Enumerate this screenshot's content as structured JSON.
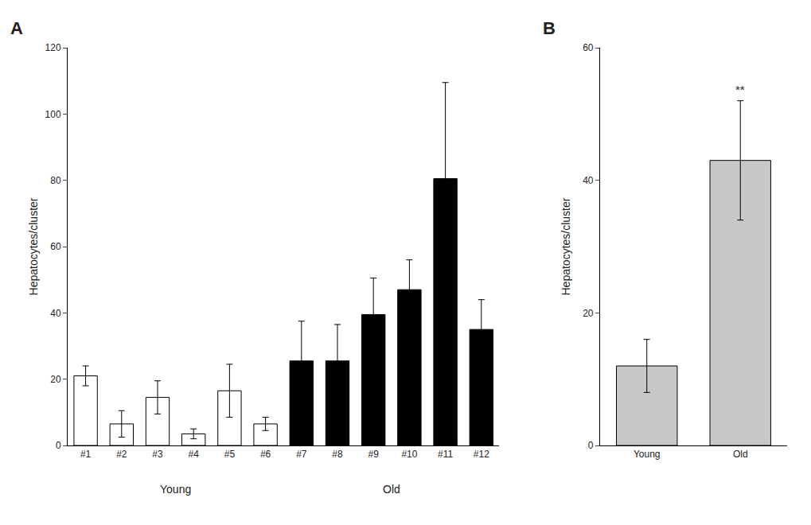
{
  "chart_data": [
    {
      "type": "bar",
      "title": "A",
      "categories": [
        "#1",
        "#2",
        "#3",
        "#4",
        "#5",
        "#6",
        "#7",
        "#8",
        "#9",
        "#10",
        "#11",
        "#12"
      ],
      "values": [
        21,
        6.5,
        14.5,
        3.5,
        16.5,
        6.5,
        25.5,
        25.5,
        39.5,
        47,
        80.5,
        35
      ],
      "errors": [
        3,
        4,
        5,
        1.5,
        8,
        2,
        12,
        11,
        11,
        9,
        29,
        9
      ],
      "colors": [
        "white",
        "white",
        "white",
        "white",
        "white",
        "white",
        "black",
        "black",
        "black",
        "black",
        "black",
        "black"
      ],
      "ylabel": "Hepatocytes/cluster",
      "ylim": [
        0,
        120
      ],
      "yticks": [
        0,
        20,
        40,
        60,
        80,
        100,
        120
      ],
      "grid": false,
      "groups": [
        {
          "label": "Young",
          "first": "#1",
          "last": "#6"
        },
        {
          "label": "Old",
          "first": "#7",
          "last": "#12"
        }
      ]
    },
    {
      "type": "bar",
      "title": "B",
      "categories": [
        "Young",
        "Old"
      ],
      "values": [
        12,
        43
      ],
      "errors": [
        4,
        9
      ],
      "colors": [
        "#c8c8c8",
        "#c8c8c8"
      ],
      "ylabel": "Hepatocytes/cluster",
      "ylim": [
        0,
        60
      ],
      "yticks": [
        0,
        20,
        40,
        60
      ],
      "grid": false,
      "annotations": [
        {
          "text": "**",
          "category": "Old"
        }
      ]
    }
  ]
}
